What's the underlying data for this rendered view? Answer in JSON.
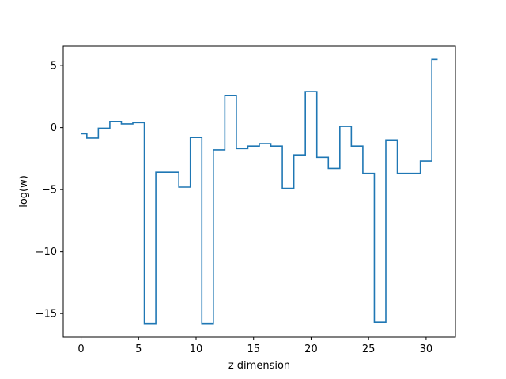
{
  "chart_data": {
    "type": "line",
    "drawstyle": "steps-mid",
    "title": "",
    "xlabel": "z dimension",
    "ylabel": "log(w)",
    "xlim": [
      -1.55,
      32.55
    ],
    "ylim": [
      -16.9,
      6.6
    ],
    "xticks": [
      0,
      5,
      10,
      15,
      20,
      25,
      30
    ],
    "yticks": [
      -15,
      -10,
      -5,
      0,
      5
    ],
    "ytick_labels": [
      "−15",
      "−10",
      "−5",
      "0",
      "5"
    ],
    "grid": false,
    "line_color": "#1f77b4",
    "x": [
      0,
      1,
      2,
      3,
      4,
      5,
      6,
      7,
      8,
      9,
      10,
      11,
      12,
      13,
      14,
      15,
      16,
      17,
      18,
      19,
      20,
      21,
      22,
      23,
      24,
      25,
      26,
      27,
      28,
      29,
      30,
      31
    ],
    "y": [
      -0.5,
      -0.85,
      -0.05,
      0.5,
      0.3,
      0.4,
      -15.8,
      -3.6,
      -3.6,
      -4.8,
      -0.8,
      -15.8,
      -1.8,
      2.6,
      -1.7,
      -1.5,
      -1.3,
      -1.5,
      -4.9,
      -2.2,
      2.9,
      -2.4,
      -3.3,
      0.1,
      -1.5,
      -3.7,
      -15.7,
      -1.0,
      -3.7,
      -3.7,
      -2.7,
      5.5
    ]
  }
}
